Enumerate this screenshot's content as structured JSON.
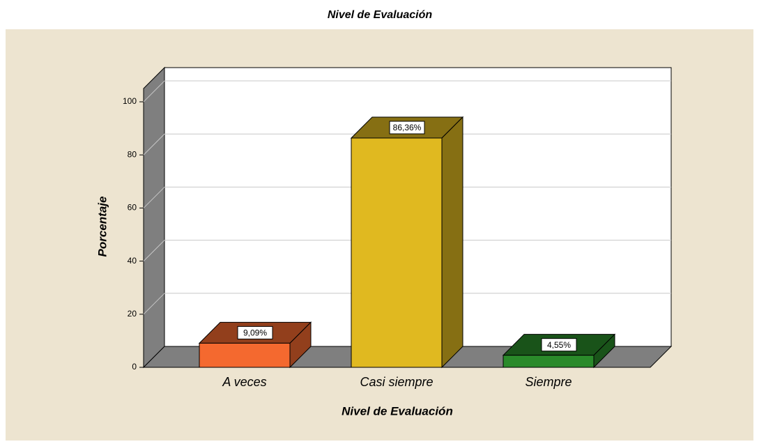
{
  "chart_data": {
    "type": "bar3d",
    "title": "Nivel de Evaluación",
    "x_label": "Nivel de Evaluación",
    "y_label": "Porcentaje",
    "categories": [
      "A veces",
      "Casi siempre",
      "Siempre"
    ],
    "values": [
      9.09,
      86.36,
      4.55
    ],
    "value_labels": [
      "9,09%",
      "86,36%",
      "4,55%"
    ],
    "colors": [
      "#f4692f",
      "#e0b920",
      "#2a8a2a"
    ],
    "ylim": [
      0,
      105
    ],
    "yticks": [
      0,
      20,
      40,
      60,
      80,
      100
    ],
    "grid": true
  }
}
